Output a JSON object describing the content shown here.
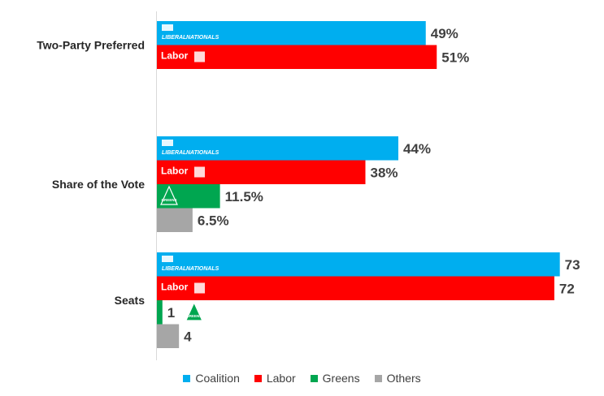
{
  "chart_data": {
    "type": "bar",
    "orientation": "horizontal",
    "groups": [
      {
        "label": "Two-Party Preferred",
        "bars": [
          {
            "party": "Coalition",
            "value": 49,
            "label": "49%"
          },
          {
            "party": "Labor",
            "value": 51,
            "label": "51%"
          }
        ]
      },
      {
        "label": "Share of the Vote",
        "bars": [
          {
            "party": "Coalition",
            "value": 44,
            "label": "44%"
          },
          {
            "party": "Labor",
            "value": 38,
            "label": "38%"
          },
          {
            "party": "Greens",
            "value": 11.5,
            "label": "11.5%"
          },
          {
            "party": "Others",
            "value": 6.5,
            "label": "6.5%"
          }
        ]
      },
      {
        "label": "Seats",
        "bars": [
          {
            "party": "Coalition",
            "value": 73,
            "label": "73"
          },
          {
            "party": "Labor",
            "value": 72,
            "label": "72"
          },
          {
            "party": "Greens",
            "value": 1,
            "label": "1"
          },
          {
            "party": "Others",
            "value": 4,
            "label": "4"
          }
        ]
      }
    ],
    "legend": {
      "position": "bottom",
      "entries": [
        {
          "name": "Coalition",
          "color": "#00aeef"
        },
        {
          "name": "Labor",
          "color": "#ff0000"
        },
        {
          "name": "Greens",
          "color": "#00a650"
        },
        {
          "name": "Others",
          "color": "#a6a6a6"
        }
      ]
    },
    "logos": {
      "coalition_liberal": "LIBERAL",
      "coalition_nationals": "NATIONALS",
      "labor": "Labor",
      "greens": "GREENS"
    }
  }
}
